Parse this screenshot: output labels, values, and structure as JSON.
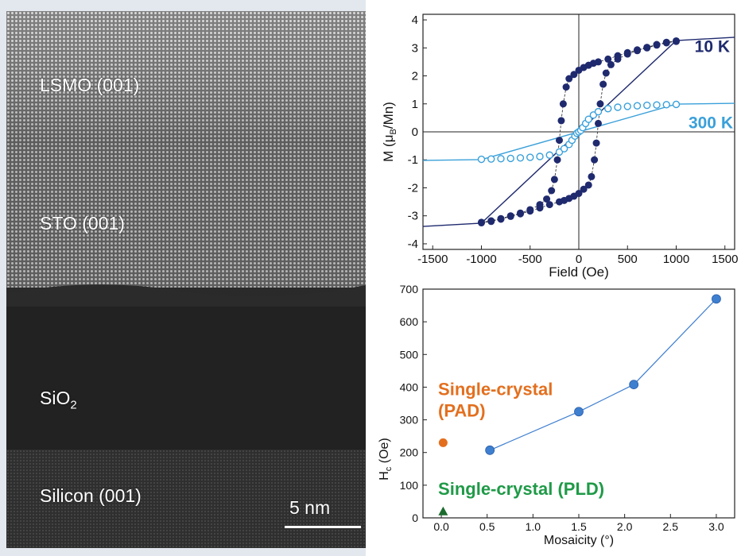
{
  "tem_image": {
    "labels": {
      "lsmo": "LSMO (001)",
      "sto": "STO (001)",
      "sio2": "SiO",
      "sio2_sub": "2",
      "silicon": "Silicon (001)"
    },
    "scale_bar_label": "5 nm"
  },
  "colors": {
    "navy": "#1f2a6e",
    "light_blue": "#3aa0da",
    "mid_blue": "#3f7fd0",
    "orange": "#e36f1e",
    "green": "#1f9a47",
    "dark_green": "#1c6b2e"
  },
  "chart_data": [
    {
      "type": "scatter",
      "xlabel": "Field (Oe)",
      "ylabel_main": "M (",
      "ylabel_mu": "μ",
      "ylabel_sub": "B",
      "ylabel_tail": "/Mn)",
      "xlim": [
        -1600,
        1600
      ],
      "ylim": [
        -4.2,
        4.2
      ],
      "xticks": [
        "-1500",
        "-1000",
        "-500",
        "0",
        "500",
        "1000",
        "1500"
      ],
      "yticks": [
        "-4",
        "-3",
        "-2",
        "-1",
        "0",
        "1",
        "2",
        "3",
        "4"
      ],
      "annotations": [
        "10 K",
        "300 K"
      ],
      "series": [
        {
          "name": "10 K",
          "marker": "filled-circle",
          "branch_descending": [
            [
              1000,
              3.25
            ],
            [
              900,
              3.2
            ],
            [
              800,
              3.12
            ],
            [
              700,
              3.02
            ],
            [
              600,
              2.93
            ],
            [
              500,
              2.83
            ],
            [
              400,
              2.72
            ],
            [
              300,
              2.6
            ],
            [
              200,
              2.5
            ],
            [
              150,
              2.45
            ],
            [
              100,
              2.38
            ],
            [
              50,
              2.3
            ],
            [
              0,
              2.2
            ],
            [
              -50,
              2.05
            ],
            [
              -100,
              1.9
            ],
            [
              -130,
              1.6
            ],
            [
              -160,
              1.0
            ],
            [
              -180,
              0.4
            ],
            [
              -200,
              -0.3
            ],
            [
              -220,
              -1.0
            ],
            [
              -250,
              -1.7
            ],
            [
              -280,
              -2.1
            ],
            [
              -330,
              -2.4
            ],
            [
              -400,
              -2.6
            ],
            [
              -500,
              -2.78
            ],
            [
              -600,
              -2.9
            ],
            [
              -700,
              -3.0
            ],
            [
              -800,
              -3.1
            ],
            [
              -900,
              -3.18
            ],
            [
              -1000,
              -3.23
            ]
          ],
          "branch_ascending": [
            [
              -1000,
              -3.25
            ],
            [
              -900,
              -3.2
            ],
            [
              -800,
              -3.12
            ],
            [
              -700,
              -3.02
            ],
            [
              -600,
              -2.93
            ],
            [
              -500,
              -2.83
            ],
            [
              -400,
              -2.72
            ],
            [
              -300,
              -2.6
            ],
            [
              -200,
              -2.5
            ],
            [
              -150,
              -2.45
            ],
            [
              -100,
              -2.38
            ],
            [
              -50,
              -2.3
            ],
            [
              0,
              -2.2
            ],
            [
              50,
              -2.05
            ],
            [
              100,
              -1.9
            ],
            [
              130,
              -1.6
            ],
            [
              160,
              -1.0
            ],
            [
              180,
              -0.4
            ],
            [
              200,
              0.3
            ],
            [
              220,
              1.0
            ],
            [
              250,
              1.7
            ],
            [
              280,
              2.1
            ],
            [
              330,
              2.4
            ],
            [
              400,
              2.6
            ],
            [
              500,
              2.78
            ],
            [
              600,
              2.9
            ],
            [
              700,
              3.0
            ],
            [
              800,
              3.1
            ],
            [
              900,
              3.18
            ],
            [
              1000,
              3.23
            ]
          ],
          "fit_curve": [
            [
              -1600,
              -3.38
            ],
            [
              -1000,
              -3.26
            ],
            [
              1000,
              3.26
            ],
            [
              1600,
              3.38
            ]
          ]
        },
        {
          "name": "300 K",
          "marker": "open-circle",
          "points": [
            [
              -1000,
              -0.98
            ],
            [
              -900,
              -0.97
            ],
            [
              -800,
              -0.96
            ],
            [
              -700,
              -0.95
            ],
            [
              -600,
              -0.93
            ],
            [
              -500,
              -0.91
            ],
            [
              -400,
              -0.88
            ],
            [
              -300,
              -0.83
            ],
            [
              -200,
              -0.72
            ],
            [
              -150,
              -0.6
            ],
            [
              -100,
              -0.45
            ],
            [
              -70,
              -0.3
            ],
            [
              -40,
              -0.15
            ],
            [
              -20,
              -0.05
            ],
            [
              0,
              0.0
            ],
            [
              20,
              0.05
            ],
            [
              40,
              0.15
            ],
            [
              70,
              0.3
            ],
            [
              100,
              0.45
            ],
            [
              150,
              0.6
            ],
            [
              200,
              0.72
            ],
            [
              300,
              0.83
            ],
            [
              400,
              0.88
            ],
            [
              500,
              0.91
            ],
            [
              600,
              0.93
            ],
            [
              700,
              0.95
            ],
            [
              800,
              0.96
            ],
            [
              900,
              0.97
            ],
            [
              1000,
              0.98
            ]
          ],
          "fit_curve": [
            [
              -1600,
              -1.02
            ],
            [
              -1000,
              -0.99
            ],
            [
              1000,
              0.99
            ],
            [
              1600,
              1.02
            ]
          ]
        }
      ]
    },
    {
      "type": "line",
      "xlabel": "Mosaicity (°)",
      "ylabel_main": "H",
      "ylabel_sub": "c",
      "ylabel_tail": " (Oe)",
      "xlim": [
        -0.2,
        3.2
      ],
      "ylim": [
        0,
        700
      ],
      "xticks": [
        "0.0",
        "0.5",
        "1.0",
        "1.5",
        "2.0",
        "2.5",
        "3.0"
      ],
      "yticks": [
        "0",
        "100",
        "200",
        "300",
        "400",
        "500",
        "600",
        "700"
      ],
      "series": [
        {
          "name": "",
          "marker": "circle",
          "x": [
            0.53,
            1.5,
            2.1,
            3.0
          ],
          "y": [
            207,
            325,
            408,
            670
          ]
        },
        {
          "name": "Single-crystal (PAD)",
          "marker": "circle",
          "x": [
            0.02
          ],
          "y": [
            230
          ]
        },
        {
          "name": "Single-crystal (PLD)",
          "marker": "triangle",
          "x": [
            0.02
          ],
          "y": [
            20
          ]
        }
      ],
      "annotations": [
        "Single-crystal",
        "(PAD)",
        "Single-crystal (PLD)"
      ]
    }
  ]
}
